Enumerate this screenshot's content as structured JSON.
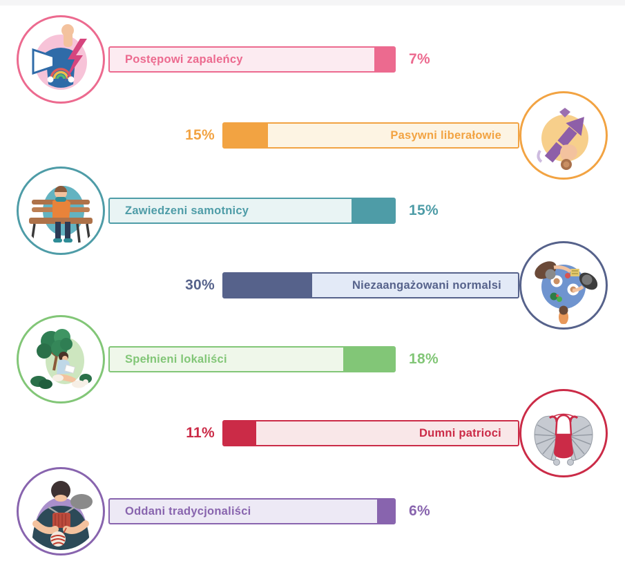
{
  "chart_data": {
    "type": "bar",
    "orientation": "horizontal",
    "title": "",
    "unit": "%",
    "categories": [
      "Postępowi zapaleńcy",
      "Pasywni liberałowie",
      "Zawiedzeni samotnicy",
      "Niezaangażowani normalsi",
      "Spełnieni lokaliści",
      "Dumni patrioci",
      "Oddani tradycjonaliści"
    ],
    "values": [
      7,
      15,
      15,
      30,
      18,
      11,
      6
    ],
    "segments": [
      {
        "label": "Postępowi zapaleńcy",
        "value": 7,
        "value_label": "7%",
        "side": "left",
        "color": "#EC6A8F",
        "color_light": "#FCEBF1",
        "icon": "protest-fist-backpack-icon"
      },
      {
        "label": "Pasywni liberałowie",
        "value": 15,
        "value_label": "15%",
        "side": "right",
        "color": "#F2A342",
        "color_light": "#FDF4E3",
        "icon": "growth-arrow-hand-icon"
      },
      {
        "label": "Zawiedzeni samotnicy",
        "value": 15,
        "value_label": "15%",
        "side": "left",
        "color": "#4E9CA7",
        "color_light": "#E9F4F4",
        "icon": "person-on-bench-icon"
      },
      {
        "label": "Niezaangażowani normalsi",
        "value": 30,
        "value_label": "30%",
        "side": "right",
        "color": "#56628B",
        "color_light": "#E3EAF7",
        "icon": "dinner-table-icon"
      },
      {
        "label": "Spełnieni lokaliści",
        "value": 18,
        "value_label": "18%",
        "side": "left",
        "color": "#82C677",
        "color_light": "#EFF7EA",
        "icon": "reading-under-tree-icon"
      },
      {
        "label": "Dumni patrioci",
        "value": 11,
        "value_label": "11%",
        "side": "right",
        "color": "#CB2B47",
        "color_light": "#F9E7E8",
        "icon": "winged-hussar-icon"
      },
      {
        "label": "Oddani tradycjonaliści",
        "value": 6,
        "value_label": "6%",
        "side": "left",
        "color": "#8864AE",
        "color_light": "#EDE9F5",
        "icon": "knitting-hands-icon"
      }
    ]
  }
}
